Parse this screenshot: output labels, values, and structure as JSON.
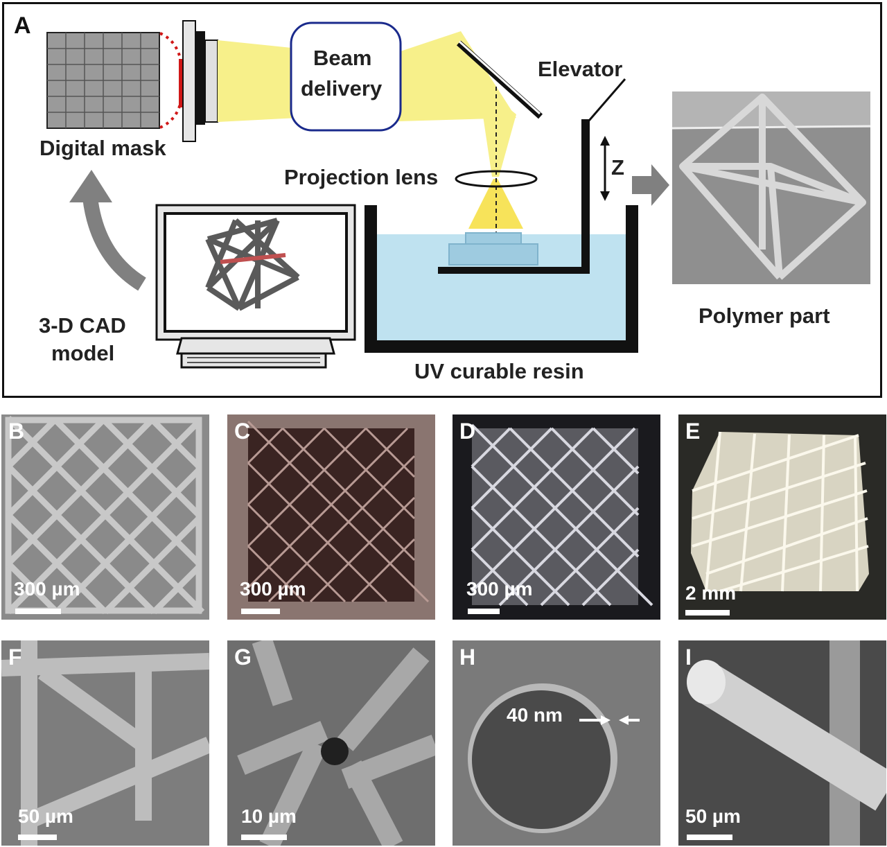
{
  "panel_a": {
    "letter": "A",
    "digital_mask": "Digital mask",
    "beam_delivery_line1": "Beam",
    "beam_delivery_line2": "delivery",
    "elevator": "Elevator",
    "z_axis": "Z",
    "projection_lens": "Projection lens",
    "cad_line1": "3-D CAD",
    "cad_line2": "model",
    "resin": "UV curable resin",
    "polymer_part": "Polymer part"
  },
  "panels": [
    {
      "letter": "B",
      "scale": "300 µm",
      "bg": "#8a8a8a"
    },
    {
      "letter": "C",
      "scale": "300 µm",
      "bg": "#5a3a36"
    },
    {
      "letter": "D",
      "scale": "300 µm",
      "bg": "#1a1a1e"
    },
    {
      "letter": "E",
      "scale": "2 mm",
      "bg": "#2a2a26"
    },
    {
      "letter": "F",
      "scale": "50 µm",
      "bg": "#7d7d7d"
    },
    {
      "letter": "G",
      "scale": "10 µm",
      "bg": "#6e6e6e"
    },
    {
      "letter": "H",
      "scale": "",
      "bg": "#7a7a7a",
      "annotation": "40 nm"
    },
    {
      "letter": "I",
      "scale": "50 µm",
      "bg": "#4a4a4a"
    }
  ],
  "colors": {
    "beam": "#f7f08a",
    "resin": "#bfe2f0",
    "frame": "#111111",
    "arrow_gray": "#808080",
    "lens_box_border": "#1a2a8c",
    "mask_red": "#d01818"
  }
}
